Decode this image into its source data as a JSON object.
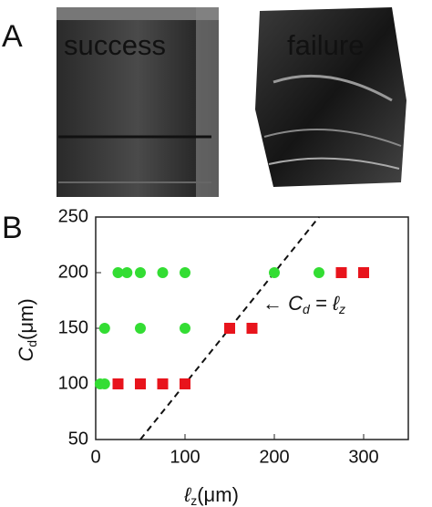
{
  "panel_a": {
    "label": "A",
    "success": "success",
    "failure": "failure",
    "success_color": "#22c43a",
    "failure_color": "#e0141c"
  },
  "panel_b_label": "B",
  "chart_data": {
    "type": "scatter",
    "xlabel": [
      "ℓ",
      "z",
      "(μm)"
    ],
    "ylabel": [
      "C",
      "d",
      "(μm)"
    ],
    "annotation": [
      "← C",
      "d",
      " = ℓ",
      "z"
    ],
    "xlim": [
      0,
      350
    ],
    "ylim": [
      50,
      250
    ],
    "xticks": [
      0,
      100,
      200,
      300
    ],
    "yticks": [
      50,
      100,
      150,
      200,
      250
    ],
    "reference_line": {
      "slope": 1,
      "intercept": 0
    },
    "series": [
      {
        "color": "#33dd33",
        "marker": "circle",
        "x": [
          25,
          35,
          50,
          75,
          100,
          200,
          250,
          10,
          50,
          100,
          5,
          10
        ],
        "values": [
          200,
          200,
          200,
          200,
          200,
          200,
          200,
          150,
          150,
          150,
          100,
          100
        ]
      },
      {
        "color": "#e8141c",
        "marker": "square",
        "x": [
          25,
          50,
          75,
          100,
          150,
          175,
          275,
          300
        ],
        "values": [
          100,
          100,
          100,
          100,
          150,
          150,
          200,
          200
        ]
      }
    ]
  }
}
